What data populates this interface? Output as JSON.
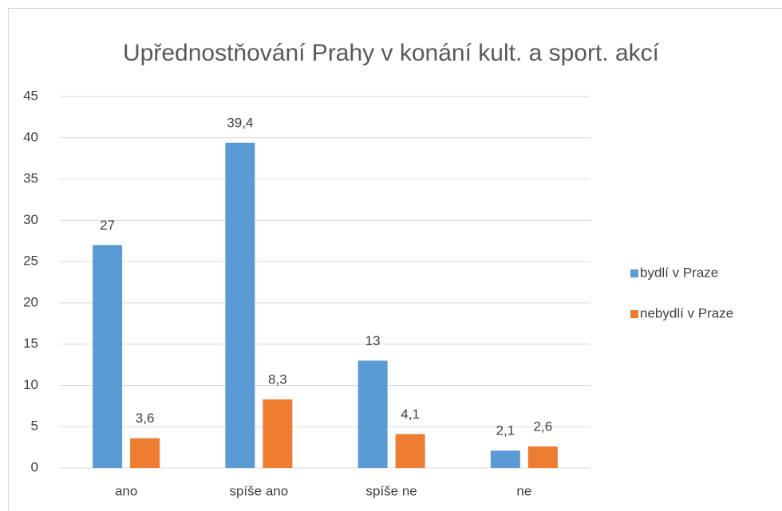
{
  "chart_data": {
    "type": "bar",
    "title": "Upřednostňování Prahy v konání kult. a sport. akcí",
    "categories": [
      "ano",
      "spíše ano",
      "spíše ne",
      "ne"
    ],
    "series": [
      {
        "name": "bydlí v Praze",
        "color": "#5b9bd5",
        "values": [
          27,
          39.4,
          13,
          2.1
        ],
        "value_labels": [
          "27",
          "39,4",
          "13",
          "2,1"
        ]
      },
      {
        "name": "nebydlí v Praze",
        "color": "#ed7d31",
        "values": [
          3.6,
          8.3,
          4.1,
          2.6
        ],
        "value_labels": [
          "3,6",
          "8,3",
          "4,1",
          "2,6"
        ]
      }
    ],
    "ylim": [
      0,
      45
    ],
    "yticks": [
      0,
      5,
      10,
      15,
      20,
      25,
      30,
      35,
      40,
      45
    ],
    "grid": true,
    "legend": "right"
  }
}
